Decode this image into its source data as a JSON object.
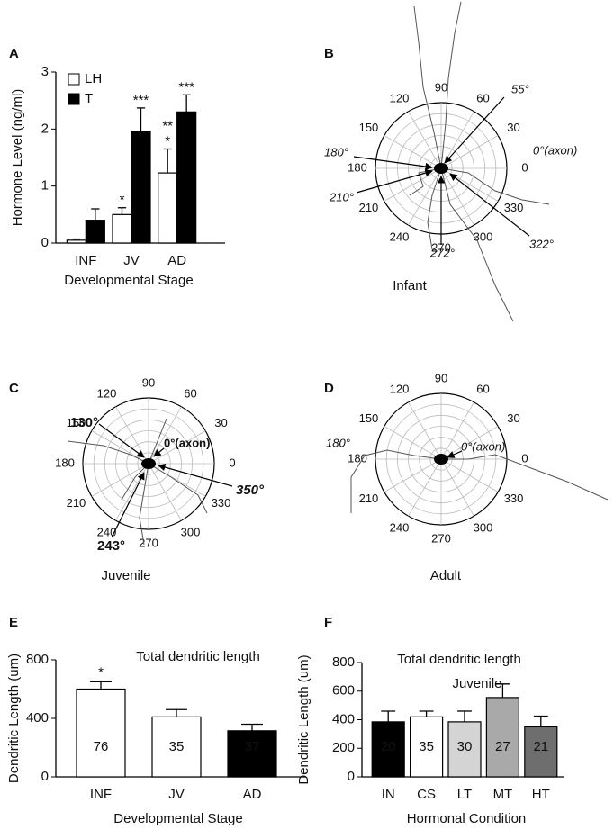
{
  "chart_data": [
    {
      "type": "bar",
      "panel": "A",
      "ylabel": "Hormone Level (ng/ml)",
      "xlabel": "Developmental Stage",
      "categories": [
        "INF",
        "JV",
        "AD"
      ],
      "series": [
        {
          "name": "LH",
          "color": "#ffffff",
          "values": [
            0.05,
            0.5,
            1.23
          ],
          "errors": [
            0.02,
            0.12,
            0.42
          ],
          "significance": [
            null,
            [
              "*"
            ],
            [
              "*",
              "**"
            ]
          ]
        },
        {
          "name": "T",
          "color": "#000000",
          "values": [
            0.4,
            1.95,
            2.3
          ],
          "errors": [
            0.2,
            0.42,
            0.3
          ],
          "significance": [
            null,
            [
              "***"
            ],
            [
              "***"
            ]
          ]
        }
      ],
      "ylim": [
        0,
        3
      ],
      "yticks": [
        0,
        1,
        2,
        3
      ],
      "legend": "upper left"
    },
    {
      "type": "polar",
      "panel": "B",
      "caption": "Infant",
      "angle_labels": [
        0,
        30,
        60,
        90,
        120,
        150,
        180,
        210,
        240,
        270,
        300,
        330
      ],
      "annotations": [
        "55°",
        "0°(axon)",
        "180°",
        "210°",
        "272°",
        "322°"
      ]
    },
    {
      "type": "polar",
      "panel": "C",
      "caption": "Juvenile",
      "angle_labels": [
        0,
        30,
        60,
        90,
        120,
        150,
        180,
        210,
        240,
        270,
        300,
        330
      ],
      "annotations": [
        "130°",
        "0°(axon)",
        "350°",
        "243°"
      ]
    },
    {
      "type": "polar",
      "panel": "D",
      "caption": "Adult",
      "angle_labels": [
        0,
        30,
        60,
        90,
        120,
        150,
        180,
        210,
        240,
        270,
        300,
        330
      ],
      "annotations": [
        "180°",
        "0°(axon)"
      ]
    },
    {
      "type": "bar",
      "panel": "E",
      "title": "Total dendritic length",
      "ylabel": "Dendritic Length (um)",
      "xlabel": "Developmental Stage",
      "categories": [
        "INF",
        "JV",
        "AD"
      ],
      "values": [
        600,
        410,
        315
      ],
      "errors": [
        50,
        50,
        45
      ],
      "colors": [
        "#ffffff",
        "#ffffff",
        "#000000"
      ],
      "n_labels": [
        76,
        35,
        37
      ],
      "significance": [
        "*",
        null,
        null
      ],
      "ylim": [
        0,
        800
      ],
      "yticks": [
        0,
        400,
        800
      ]
    },
    {
      "type": "bar",
      "panel": "F",
      "title": "Total dendritic length",
      "subtitle": "Juvenile",
      "ylabel": "Dendritic Length (um)",
      "xlabel": "Hormonal Condition",
      "categories": [
        "IN",
        "CS",
        "LT",
        "MT",
        "HT"
      ],
      "values": [
        385,
        420,
        385,
        555,
        350
      ],
      "errors": [
        75,
        40,
        75,
        95,
        75
      ],
      "colors": [
        "#000000",
        "#ffffff",
        "#d4d4d4",
        "#a9a9a9",
        "#6e6e6e"
      ],
      "n_labels": [
        20,
        35,
        30,
        27,
        21
      ],
      "ylim": [
        0,
        800
      ],
      "yticks": [
        0,
        200,
        400,
        600,
        800
      ]
    }
  ]
}
